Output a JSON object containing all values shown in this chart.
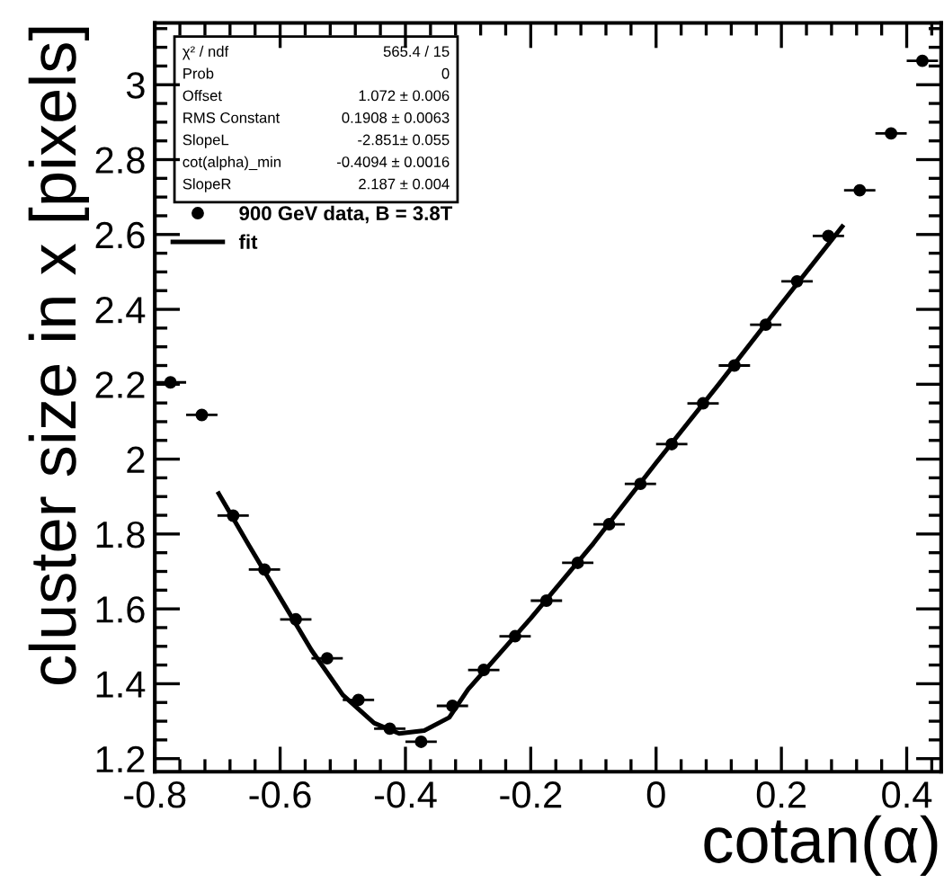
{
  "chart_data": {
    "type": "scatter",
    "xlabel": "cotan(α)",
    "ylabel": "cluster size in x [pixels]",
    "xlim": [
      -0.8,
      0.455
    ],
    "ylim": [
      1.165,
      3.165
    ],
    "xticks": [
      -0.8,
      -0.6,
      -0.4,
      -0.2,
      0,
      0.2,
      0.4
    ],
    "yticks": [
      1.2,
      1.4,
      1.6,
      1.8,
      2,
      2.2,
      2.4,
      2.6,
      2.8,
      3
    ],
    "grid": false,
    "legend": "top left",
    "series": [
      {
        "name": "900 GeV data, B = 3.8T",
        "color": "#000000",
        "marker": "circle",
        "x": [
          -0.775,
          -0.725,
          -0.675,
          -0.625,
          -0.575,
          -0.525,
          -0.475,
          -0.425,
          -0.375,
          -0.325,
          -0.275,
          -0.225,
          -0.175,
          -0.125,
          -0.075,
          -0.025,
          0.025,
          0.075,
          0.125,
          0.175,
          0.225,
          0.275,
          0.325,
          0.375,
          0.425
        ],
        "values": [
          2.205,
          2.118,
          1.849,
          1.705,
          1.572,
          1.468,
          1.357,
          1.28,
          1.245,
          1.341,
          1.437,
          1.527,
          1.622,
          1.723,
          1.826,
          1.934,
          2.04,
          2.149,
          2.25,
          2.359,
          2.475,
          2.596,
          2.718,
          2.87,
          3.064
        ],
        "xerrors": [
          0.025,
          0.025,
          0.025,
          0.025,
          0.025,
          0.025,
          0.025,
          0.025,
          0.025,
          0.025,
          0.025,
          0.025,
          0.025,
          0.025,
          0.025,
          0.025,
          0.025,
          0.025,
          0.025,
          0.025,
          0.025,
          0.025,
          0.025,
          0.025,
          0.025
        ]
      },
      {
        "name": "fit",
        "type": "line",
        "color": "#000000",
        "line_style": "solid",
        "x": [
          -0.698,
          -0.65,
          -0.6,
          -0.55,
          -0.5,
          -0.45,
          -0.41,
          -0.37,
          -0.33,
          -0.3,
          -0.25,
          -0.2,
          -0.1,
          0,
          0.1,
          0.2,
          0.297
        ],
        "values": [
          1.908,
          1.77,
          1.63,
          1.49,
          1.37,
          1.295,
          1.267,
          1.275,
          1.31,
          1.385,
          1.48,
          1.575,
          1.775,
          1.99,
          2.2,
          2.415,
          2.621
        ]
      }
    ],
    "annotations": [
      "χ² / ndf",
      "565.4 / 15",
      "Prob",
      "0",
      "Offset",
      "1.072 ± 0.006",
      "RMS Constant",
      "0.1908 ± 0.0063",
      "SlopeL",
      "-2.851± 0.055",
      "cot(alpha)_min",
      "-0.4094 ± 0.0016",
      "SlopeR",
      "2.187 ± 0.004"
    ]
  }
}
